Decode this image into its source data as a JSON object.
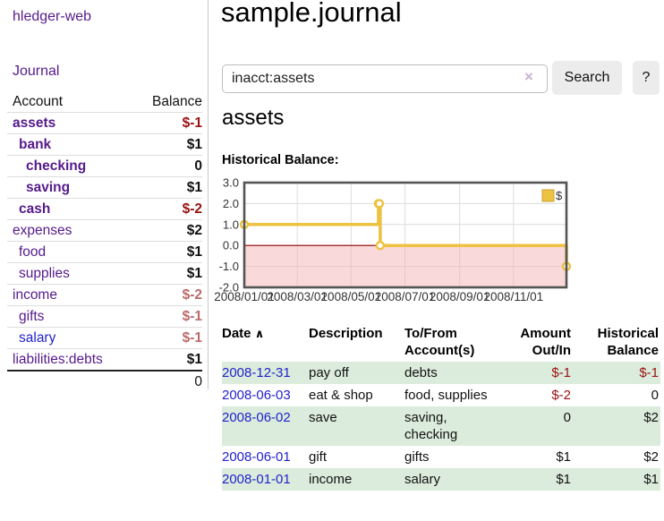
{
  "sidebar": {
    "brand": "hledger-web",
    "nav": {
      "journal": "Journal"
    },
    "accounts": {
      "col_account": "Account",
      "col_balance": "Balance",
      "rows": [
        {
          "name": "assets",
          "balance": "$-1"
        },
        {
          "name": "bank",
          "balance": "$1"
        },
        {
          "name": "checking",
          "balance": "0"
        },
        {
          "name": "saving",
          "balance": "$1"
        },
        {
          "name": "cash",
          "balance": "$-2"
        },
        {
          "name": "expenses",
          "balance": "$2"
        },
        {
          "name": "food",
          "balance": "$1"
        },
        {
          "name": "supplies",
          "balance": "$1"
        },
        {
          "name": "income",
          "balance": "$-2"
        },
        {
          "name": "gifts",
          "balance": "$-1"
        },
        {
          "name": "salary",
          "balance": "$-1"
        },
        {
          "name": "liabilities:debts",
          "balance": "$1"
        }
      ],
      "total": "0"
    }
  },
  "main": {
    "title": "sample.journal",
    "search": {
      "value": "inacct:assets",
      "clear_icon": "×",
      "button": "Search",
      "help_button": "?"
    },
    "account_heading": "assets",
    "chart_label": "Historical Balance:",
    "table": {
      "sort_icon": "∧",
      "headers": {
        "date": "Date",
        "description": "Description",
        "tofrom": "To/From Account(s)",
        "amount": "Amount Out/In",
        "balance": "Historical Balance"
      },
      "rows": [
        {
          "date": "2008-12-31",
          "description": "pay off",
          "accounts": "debts",
          "amount": "$-1",
          "balance": "$-1"
        },
        {
          "date": "2008-06-03",
          "description": "eat & shop",
          "accounts": "food, supplies",
          "amount": "$-2",
          "balance": "0"
        },
        {
          "date": "2008-06-02",
          "description": "save",
          "accounts": "saving, checking",
          "amount": "0",
          "balance": "$2"
        },
        {
          "date": "2008-06-01",
          "description": "gift",
          "accounts": "gifts",
          "amount": "$1",
          "balance": "$2"
        },
        {
          "date": "2008-01-01",
          "description": "income",
          "accounts": "salary",
          "amount": "$1",
          "balance": "$1"
        }
      ]
    }
  },
  "chart_data": {
    "type": "line",
    "title": "Historical Balance:",
    "step": true,
    "series": [
      {
        "name": "$",
        "color": "#edc240",
        "points": [
          [
            "2008-01-01",
            1
          ],
          [
            "2008-06-01",
            2
          ],
          [
            "2008-06-02",
            2
          ],
          [
            "2008-06-03",
            0
          ],
          [
            "2008-12-31",
            -1
          ]
        ]
      }
    ],
    "xlim": [
      "2008-01-01",
      "2008-12-31"
    ],
    "ylim": [
      -2,
      3
    ],
    "y_ticks": [
      3.0,
      2.0,
      1.0,
      0.0,
      -1.0,
      -2.0
    ],
    "x_ticks": [
      "2008/01/01",
      "2008/03/01",
      "2008/05/01",
      "2008/07/01",
      "2008/09/01",
      "2008/11/01"
    ],
    "grid": true,
    "legend": "$",
    "legend_position": "top-right",
    "negative_fill": "#f4b4b4",
    "zero_line_color": "#8b0000",
    "border_color": "#545454"
  },
  "colors": {
    "visited_link_purple": "#551a8b",
    "link_blue": "#2222cc",
    "negative_strong": "#991111",
    "negative_soft": "#bb6a6a",
    "row_stripe_green": "#dcecdc",
    "chart_line_gold": "#edc240"
  }
}
